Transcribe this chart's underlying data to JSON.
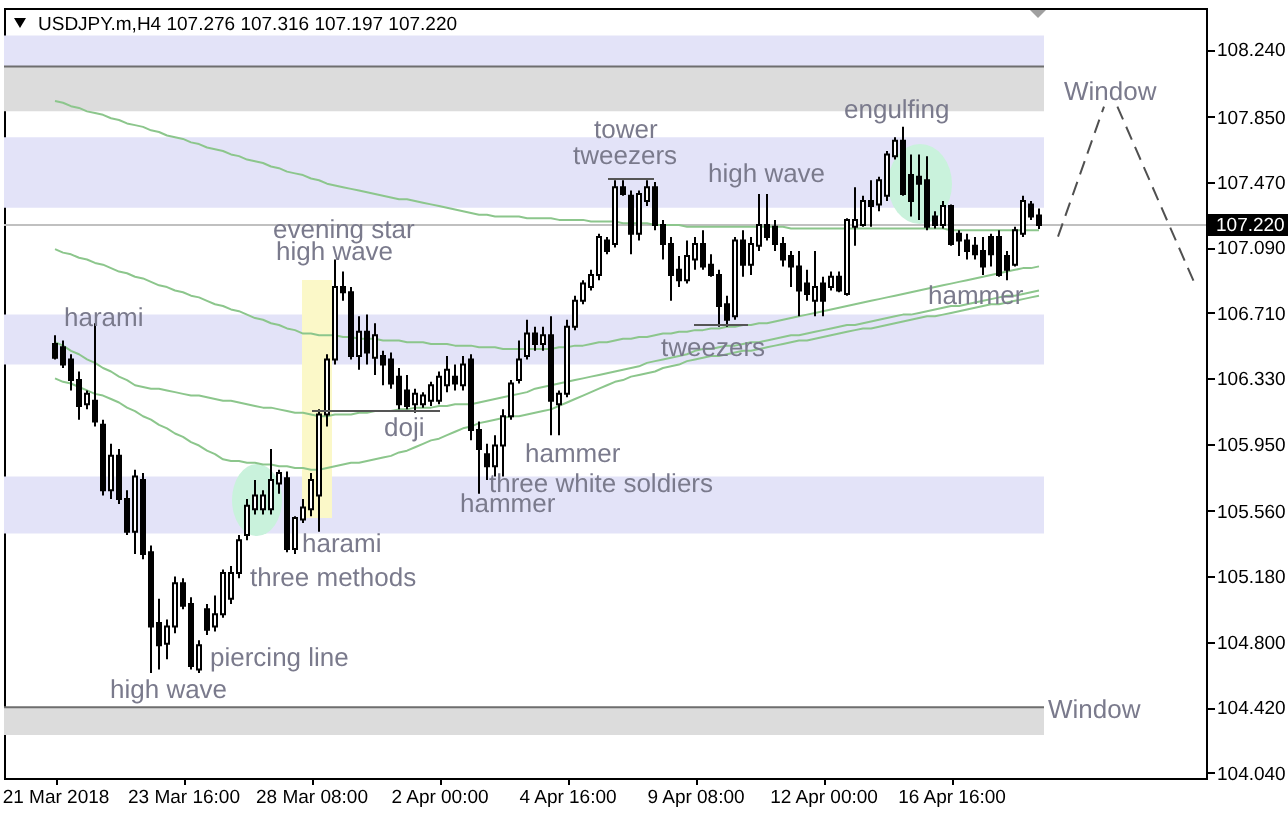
{
  "chart_data": {
    "type": "candlestick",
    "title": "USDJPY.m,H4 107.276 107.316 107.197 107.220",
    "categories": [
      "21 Mar 2018",
      null,
      null,
      null,
      null,
      null,
      null,
      null,
      null,
      null,
      null,
      null,
      null,
      null,
      null,
      null,
      "23 Mar 16:00",
      null,
      null,
      null,
      null,
      null,
      null,
      null,
      null,
      null,
      null,
      null,
      null,
      null,
      null,
      null,
      "28 Mar 08:00",
      null,
      null,
      null,
      null,
      null,
      null,
      null,
      null,
      null,
      null,
      null,
      null,
      null,
      null,
      null,
      "2 Apr 00:00",
      null,
      null,
      null,
      null,
      null,
      null,
      null,
      null,
      null,
      null,
      null,
      null,
      null,
      null,
      null,
      "4 Apr 16:00",
      null,
      null,
      null,
      null,
      null,
      null,
      null,
      null,
      null,
      null,
      null,
      null,
      null,
      null,
      null,
      "9 Apr 08:00",
      null,
      null,
      null,
      null,
      null,
      null,
      null,
      null,
      null,
      null,
      null,
      null,
      null,
      null,
      null,
      "12 Apr 00:00",
      null,
      null,
      null,
      null,
      null,
      null,
      null,
      null,
      null,
      null,
      null,
      null,
      null,
      null,
      null,
      "16 Apr 16:00",
      null,
      null,
      null,
      null,
      null,
      null,
      null,
      null,
      null,
      null,
      null
    ],
    "ohlc": [
      [
        106.53,
        106.58,
        106.44,
        106.45
      ],
      [
        106.51,
        106.55,
        106.39,
        106.41
      ],
      [
        106.44,
        106.47,
        106.26,
        106.32
      ],
      [
        106.32,
        106.37,
        106.09,
        106.17
      ],
      [
        106.18,
        106.26,
        106.15,
        106.24
      ],
      [
        106.2,
        106.65,
        106.05,
        106.08
      ],
      [
        106.06,
        106.09,
        105.65,
        105.68
      ],
      [
        105.68,
        105.95,
        105.63,
        105.88
      ],
      [
        105.88,
        105.92,
        105.6,
        105.63
      ],
      [
        105.63,
        105.68,
        105.42,
        105.44
      ],
      [
        105.44,
        105.8,
        105.31,
        105.76
      ],
      [
        105.74,
        105.78,
        105.28,
        105.31
      ],
      [
        105.32,
        105.36,
        104.62,
        104.89
      ],
      [
        104.91,
        105.05,
        104.64,
        104.78
      ],
      [
        104.79,
        104.93,
        104.7,
        104.89
      ],
      [
        104.89,
        105.18,
        104.85,
        105.14
      ],
      [
        105.14,
        105.17,
        104.99,
        105.01
      ],
      [
        105.02,
        105.06,
        104.64,
        104.66
      ],
      [
        104.64,
        104.81,
        104.62,
        104.78
      ],
      [
        104.99,
        105.02,
        104.84,
        104.87
      ],
      [
        104.89,
        105.07,
        104.86,
        104.96
      ],
      [
        104.96,
        105.22,
        104.94,
        105.2
      ],
      [
        105.05,
        105.24,
        105.02,
        105.2
      ],
      [
        105.2,
        105.42,
        105.17,
        105.39
      ],
      [
        105.42,
        105.63,
        105.39,
        105.59
      ],
      [
        105.57,
        105.74,
        105.54,
        105.65
      ],
      [
        105.57,
        105.68,
        105.54,
        105.65
      ],
      [
        105.57,
        105.92,
        105.54,
        105.74
      ],
      [
        105.72,
        105.8,
        105.66,
        105.78
      ],
      [
        105.75,
        105.79,
        105.32,
        105.34
      ],
      [
        105.34,
        105.53,
        105.31,
        105.52
      ],
      [
        105.51,
        105.63,
        105.49,
        105.58
      ],
      [
        105.57,
        105.78,
        105.53,
        105.74
      ],
      [
        105.65,
        106.15,
        105.44,
        106.12
      ],
      [
        106.12,
        106.47,
        106.05,
        106.44
      ],
      [
        106.44,
        107.02,
        106.41,
        106.86
      ],
      [
        106.86,
        106.95,
        106.78,
        106.83
      ],
      [
        106.83,
        106.86,
        106.44,
        106.46
      ],
      [
        106.46,
        106.69,
        106.38,
        106.6
      ],
      [
        106.6,
        106.7,
        106.41,
        106.48
      ],
      [
        106.45,
        106.65,
        106.35,
        106.58
      ],
      [
        106.46,
        106.49,
        106.29,
        106.41
      ],
      [
        106.44,
        106.48,
        106.27,
        106.3
      ],
      [
        106.34,
        106.39,
        106.15,
        106.18
      ],
      [
        106.26,
        106.35,
        106.15,
        106.17
      ],
      [
        106.18,
        106.27,
        106.13,
        106.24
      ],
      [
        106.18,
        106.25,
        106.16,
        106.23
      ],
      [
        106.2,
        106.31,
        106.17,
        106.29
      ],
      [
        106.2,
        106.37,
        106.18,
        106.34
      ],
      [
        106.29,
        106.46,
        106.25,
        106.38
      ],
      [
        106.34,
        106.41,
        106.26,
        106.3
      ],
      [
        106.29,
        106.46,
        106.26,
        106.41
      ],
      [
        106.44,
        106.47,
        105.97,
        106.03
      ],
      [
        106.03,
        106.08,
        105.66,
        105.92
      ],
      [
        105.89,
        105.95,
        105.74,
        105.82
      ],
      [
        105.82,
        106.0,
        105.76,
        105.94
      ],
      [
        105.94,
        106.15,
        105.76,
        106.11
      ],
      [
        106.11,
        106.32,
        106.09,
        106.3
      ],
      [
        106.32,
        106.55,
        106.3,
        106.44
      ],
      [
        106.46,
        106.67,
        106.44,
        106.59
      ],
      [
        106.59,
        106.63,
        106.49,
        106.53
      ],
      [
        106.53,
        106.63,
        106.49,
        106.58
      ],
      [
        106.58,
        106.69,
        106.0,
        106.2
      ],
      [
        106.18,
        106.26,
        106.0,
        106.24
      ],
      [
        106.24,
        106.67,
        106.22,
        106.63
      ],
      [
        106.63,
        106.81,
        106.61,
        106.78
      ],
      [
        106.78,
        106.9,
        106.76,
        106.88
      ],
      [
        106.86,
        106.96,
        106.84,
        106.93
      ],
      [
        106.93,
        107.17,
        106.9,
        107.15
      ],
      [
        107.13,
        107.15,
        107.05,
        107.07
      ],
      [
        107.11,
        107.48,
        107.09,
        107.44
      ],
      [
        107.44,
        107.48,
        107.39,
        107.4
      ],
      [
        107.39,
        107.42,
        107.05,
        107.17
      ],
      [
        107.17,
        107.42,
        107.13,
        107.4
      ],
      [
        107.36,
        107.48,
        107.33,
        107.44
      ],
      [
        107.44,
        107.47,
        107.19,
        107.22
      ],
      [
        107.22,
        107.25,
        107.02,
        107.11
      ],
      [
        107.11,
        107.15,
        106.78,
        106.93
      ],
      [
        106.96,
        107.04,
        106.86,
        106.9
      ],
      [
        106.9,
        107.13,
        106.88,
        107.04
      ],
      [
        107.02,
        107.15,
        106.96,
        107.11
      ],
      [
        107.11,
        107.19,
        106.96,
        106.98
      ],
      [
        106.99,
        107.05,
        106.92,
        106.93
      ],
      [
        106.93,
        106.96,
        106.63,
        106.75
      ],
      [
        106.76,
        106.81,
        106.63,
        106.67
      ],
      [
        106.69,
        107.15,
        106.67,
        107.13
      ],
      [
        107.13,
        107.19,
        106.92,
        106.99
      ],
      [
        106.99,
        107.15,
        106.93,
        107.11
      ],
      [
        107.1,
        107.4,
        107.07,
        107.22
      ],
      [
        107.22,
        107.4,
        107.13,
        107.15
      ],
      [
        107.21,
        107.25,
        107.07,
        107.11
      ],
      [
        107.11,
        107.15,
        106.98,
        107.02
      ],
      [
        107.04,
        107.07,
        106.86,
        106.98
      ],
      [
        106.98,
        107.07,
        106.69,
        106.84
      ],
      [
        106.88,
        106.96,
        106.78,
        106.82
      ],
      [
        106.78,
        107.07,
        106.69,
        106.86
      ],
      [
        106.88,
        106.92,
        106.69,
        106.78
      ],
      [
        106.86,
        106.95,
        106.84,
        106.92
      ],
      [
        106.92,
        106.95,
        106.83,
        106.84
      ],
      [
        106.82,
        107.26,
        106.81,
        107.25
      ],
      [
        107.21,
        107.44,
        107.1,
        107.25
      ],
      [
        107.22,
        107.39,
        107.21,
        107.36
      ],
      [
        107.36,
        107.48,
        107.21,
        107.33
      ],
      [
        107.34,
        107.5,
        107.3,
        107.48
      ],
      [
        107.39,
        107.65,
        107.36,
        107.63
      ],
      [
        107.62,
        107.73,
        107.6,
        107.71
      ],
      [
        107.71,
        107.79,
        107.39,
        107.4
      ],
      [
        107.51,
        107.63,
        107.27,
        107.36
      ],
      [
        107.5,
        107.63,
        107.25,
        107.46
      ],
      [
        107.48,
        107.62,
        107.19,
        107.21
      ],
      [
        107.27,
        107.3,
        107.2,
        107.22
      ],
      [
        107.22,
        107.36,
        107.2,
        107.33
      ],
      [
        107.33,
        107.34,
        107.1,
        107.11
      ],
      [
        107.17,
        107.19,
        107.04,
        107.13
      ],
      [
        107.13,
        107.17,
        107.02,
        107.07
      ],
      [
        107.1,
        107.15,
        107.02,
        107.05
      ],
      [
        107.07,
        107.15,
        106.93,
        106.98
      ],
      [
        107.15,
        107.17,
        106.98,
        107.05
      ],
      [
        107.15,
        107.19,
        106.92,
        106.93
      ],
      [
        107.04,
        107.07,
        106.9,
        106.96
      ],
      [
        106.99,
        107.21,
        106.98,
        107.19
      ],
      [
        107.17,
        107.39,
        107.15,
        107.36
      ],
      [
        107.34,
        107.36,
        107.25,
        107.27
      ],
      [
        107.276,
        107.316,
        107.197,
        107.22
      ]
    ],
    "series": [
      {
        "type": "line",
        "color": "#8cc68c",
        "values": [
          107.94,
          107.93,
          107.91,
          107.9,
          107.88,
          107.87,
          107.86,
          107.84,
          107.83,
          107.81,
          107.8,
          107.79,
          107.77,
          107.76,
          107.74,
          107.73,
          107.72,
          107.7,
          107.69,
          107.67,
          107.66,
          107.65,
          107.63,
          107.62,
          107.6,
          107.59,
          107.58,
          107.56,
          107.55,
          107.53,
          107.52,
          107.51,
          107.49,
          107.48,
          107.46,
          107.45,
          107.44,
          107.43,
          107.42,
          107.41,
          107.4,
          107.39,
          107.38,
          107.37,
          107.37,
          107.36,
          107.35,
          107.34,
          107.33,
          107.32,
          107.31,
          107.3,
          107.29,
          107.28,
          107.28,
          107.27,
          107.27,
          107.27,
          107.27,
          107.26,
          107.26,
          107.26,
          107.26,
          107.25,
          107.25,
          107.25,
          107.25,
          107.24,
          107.24,
          107.24,
          107.24,
          107.23,
          107.23,
          107.23,
          107.23,
          107.22,
          107.22,
          107.22,
          107.22,
          107.21,
          107.21,
          107.21,
          107.21,
          107.21,
          107.21,
          107.21,
          107.21,
          107.21,
          107.21,
          107.21,
          107.21,
          107.21,
          107.2,
          107.2,
          107.2,
          107.2,
          107.2,
          107.2,
          107.2,
          107.2,
          107.2,
          107.2,
          107.2,
          107.2,
          107.2,
          107.2,
          107.2,
          107.2,
          107.2,
          107.2,
          107.2,
          107.2,
          107.19,
          107.19,
          107.19,
          107.19,
          107.19,
          107.19,
          107.19,
          107.19,
          107.19,
          107.19,
          107.19,
          107.19
        ]
      },
      {
        "type": "line",
        "color": "#8cc68c",
        "values": [
          107.08,
          107.06,
          107.05,
          107.03,
          107.02,
          107.0,
          106.99,
          106.97,
          106.95,
          106.94,
          106.92,
          106.91,
          106.89,
          106.87,
          106.86,
          106.84,
          106.83,
          106.81,
          106.8,
          106.78,
          106.76,
          106.75,
          106.73,
          106.72,
          106.7,
          106.68,
          106.67,
          106.65,
          106.64,
          106.62,
          106.61,
          106.59,
          106.59,
          106.58,
          106.58,
          106.58,
          106.57,
          106.57,
          106.56,
          106.56,
          106.56,
          106.55,
          106.55,
          106.55,
          106.54,
          106.54,
          106.54,
          106.53,
          106.53,
          106.53,
          106.52,
          106.52,
          106.52,
          106.51,
          106.51,
          106.51,
          106.5,
          106.5,
          106.5,
          106.5,
          106.5,
          106.5,
          106.5,
          106.51,
          106.51,
          106.52,
          106.52,
          106.53,
          106.54,
          106.54,
          106.55,
          106.56,
          106.56,
          106.57,
          106.57,
          106.58,
          106.59,
          106.59,
          106.6,
          106.6,
          106.61,
          106.61,
          106.62,
          106.62,
          106.63,
          106.63,
          106.64,
          106.64,
          106.65,
          106.65,
          106.66,
          106.67,
          106.68,
          106.69,
          106.7,
          106.71,
          106.72,
          106.73,
          106.74,
          106.75,
          106.76,
          106.77,
          106.78,
          106.79,
          106.8,
          106.81,
          106.82,
          106.83,
          106.84,
          106.85,
          106.86,
          106.87,
          106.88,
          106.89,
          106.9,
          106.91,
          106.92,
          106.93,
          106.94,
          106.95,
          106.96,
          106.97,
          106.97,
          106.98
        ]
      },
      {
        "type": "line",
        "color": "#8cc68c",
        "values": [
          106.54,
          106.52,
          106.49,
          106.47,
          106.44,
          106.42,
          106.39,
          106.37,
          106.34,
          106.32,
          106.29,
          106.28,
          106.27,
          106.27,
          106.26,
          106.25,
          106.24,
          106.23,
          106.23,
          106.22,
          106.21,
          106.2,
          106.2,
          106.19,
          106.18,
          106.17,
          106.16,
          106.16,
          106.15,
          106.14,
          106.13,
          106.13,
          106.12,
          106.11,
          106.11,
          106.12,
          106.12,
          106.12,
          106.13,
          106.13,
          106.14,
          106.14,
          106.14,
          106.15,
          106.15,
          106.16,
          106.16,
          106.16,
          106.17,
          106.17,
          106.18,
          106.18,
          106.18,
          106.19,
          106.2,
          106.21,
          106.22,
          106.23,
          106.24,
          106.25,
          106.27,
          106.28,
          106.29,
          106.3,
          106.31,
          106.32,
          106.33,
          106.34,
          106.35,
          106.36,
          106.37,
          106.38,
          106.39,
          106.4,
          106.42,
          106.43,
          106.44,
          106.45,
          106.46,
          106.47,
          106.49,
          106.5,
          106.5,
          106.51,
          106.52,
          106.52,
          106.53,
          106.54,
          106.54,
          106.55,
          106.56,
          106.57,
          106.58,
          106.58,
          106.59,
          106.6,
          106.61,
          106.62,
          106.63,
          106.64,
          106.64,
          106.65,
          106.66,
          106.67,
          106.68,
          106.69,
          106.7,
          106.7,
          106.71,
          106.72,
          106.73,
          106.74,
          106.75,
          106.75,
          106.76,
          106.77,
          106.78,
          106.79,
          106.8,
          106.81,
          106.81,
          106.82,
          106.83,
          106.84
        ]
      },
      {
        "type": "line",
        "color": "#8cc68c",
        "values": [
          106.33,
          106.31,
          106.3,
          106.28,
          106.26,
          106.24,
          106.23,
          106.21,
          106.19,
          106.16,
          106.14,
          106.11,
          106.09,
          106.06,
          106.04,
          106.01,
          105.99,
          105.96,
          105.94,
          105.91,
          105.89,
          105.86,
          105.85,
          105.85,
          105.84,
          105.84,
          105.83,
          105.83,
          105.82,
          105.82,
          105.81,
          105.81,
          105.8,
          105.8,
          105.81,
          105.82,
          105.83,
          105.84,
          105.84,
          105.85,
          105.86,
          105.87,
          105.88,
          105.9,
          105.91,
          105.93,
          105.95,
          105.97,
          105.98,
          106.0,
          106.02,
          106.04,
          106.05,
          106.07,
          106.08,
          106.09,
          106.1,
          106.11,
          106.11,
          106.12,
          106.13,
          106.14,
          106.15,
          106.17,
          106.19,
          106.21,
          106.23,
          106.25,
          106.27,
          106.29,
          106.31,
          106.32,
          106.34,
          106.35,
          106.36,
          106.37,
          106.39,
          106.4,
          106.41,
          106.43,
          106.44,
          106.45,
          106.46,
          106.46,
          106.47,
          106.48,
          106.49,
          106.49,
          106.5,
          106.51,
          106.52,
          106.53,
          106.54,
          106.55,
          106.55,
          106.56,
          106.57,
          106.58,
          106.59,
          106.6,
          106.61,
          106.62,
          106.62,
          106.63,
          106.64,
          106.65,
          106.66,
          106.67,
          106.68,
          106.69,
          106.69,
          106.7,
          106.71,
          106.72,
          106.73,
          106.74,
          106.75,
          106.76,
          106.76,
          106.77,
          106.78,
          106.79,
          106.8,
          106.81
        ]
      }
    ],
    "ylim": [
      104.01,
      108.48
    ],
    "yticks": [
      {
        "value": 108.24,
        "label": "108.240"
      },
      {
        "value": 107.85,
        "label": "107.850"
      },
      {
        "value": 107.47,
        "label": "107.470"
      },
      {
        "value": 107.09,
        "label": "107.090"
      },
      {
        "value": 106.71,
        "label": "106.710"
      },
      {
        "value": 106.33,
        "label": "106.330"
      },
      {
        "value": 105.95,
        "label": "105.950"
      },
      {
        "value": 105.56,
        "label": "105.560"
      },
      {
        "value": 105.18,
        "label": "105.180"
      },
      {
        "value": 104.8,
        "label": "104.800"
      },
      {
        "value": 104.42,
        "label": "104.420"
      },
      {
        "value": 104.04,
        "label": "104.040"
      }
    ],
    "bands": [
      {
        "axis": "y",
        "from": 108.14,
        "to": 108.32,
        "color": "#e3e3f8"
      },
      {
        "axis": "y",
        "from": 107.88,
        "to": 108.14,
        "color": "#dcdcdc"
      },
      {
        "axis": "y",
        "from": 107.32,
        "to": 107.73,
        "color": "#e3e3f8"
      },
      {
        "axis": "y",
        "from": 106.41,
        "to": 106.7,
        "color": "#e3e3f8"
      },
      {
        "axis": "y",
        "from": 105.43,
        "to": 105.76,
        "color": "#e3e3f8"
      },
      {
        "axis": "y",
        "from": 104.26,
        "to": 104.42,
        "color": "#dcdcdc"
      }
    ],
    "ref_lines": [
      {
        "axis": "y",
        "value": 107.22,
        "label": "107.220",
        "color": "#c0c0c0"
      },
      {
        "axis": "y",
        "value": 108.14,
        "color": "#6e6e6e"
      },
      {
        "axis": "y",
        "value": 104.42,
        "color": "#6e6e6e"
      }
    ],
    "annotations": [
      "harami",
      "evening star",
      "high wave",
      "doji",
      "harami",
      "three methods",
      "piercing line",
      "high wave",
      "hammer",
      "three white soldiers",
      "hammer",
      "tower",
      "tweezers",
      "high wave",
      "tweezers",
      "engulfing",
      "hammer",
      "Window",
      "Window"
    ]
  }
}
